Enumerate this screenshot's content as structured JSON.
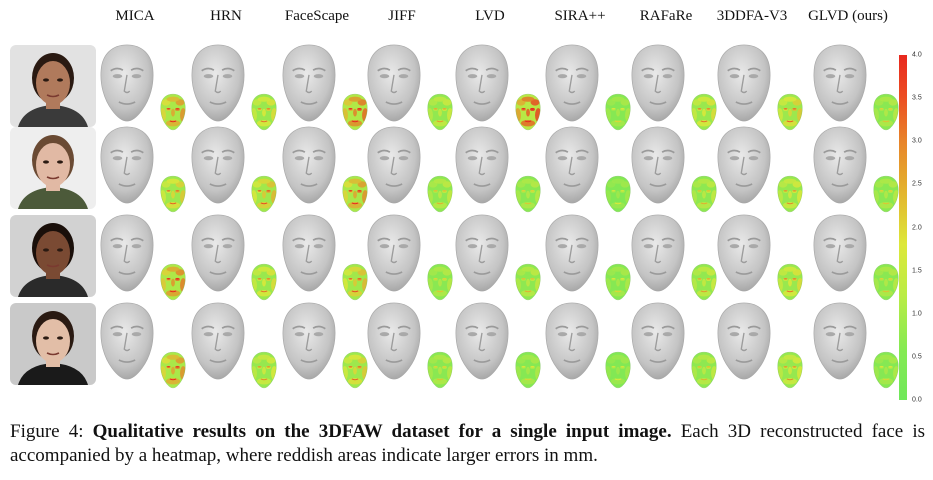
{
  "figure": {
    "methods": [
      "MICA",
      "HRN",
      "FaceScape",
      "JIFF",
      "LVD",
      "SIRA++",
      "RAFaRe",
      "3DDFA-V3",
      "GLVD (ours)"
    ],
    "colorbar": {
      "ticks": [
        "4.0",
        "3.5",
        "3.0",
        "2.5",
        "2.0",
        "1.5",
        "1.0",
        "0.5",
        "0.0"
      ],
      "colors": {
        "high": "#e8281e",
        "mid": "#dde83a",
        "low": "#6fe85a"
      }
    },
    "subjects": [
      {
        "skin": "#b07a5c",
        "hair": "#2a1a12",
        "bg": "#e2e2e2",
        "shirt": "#3a3a3a"
      },
      {
        "skin": "#e1b9a4",
        "hair": "#6a4a33",
        "bg": "#eeeeee",
        "shirt": "#4c5a3a"
      },
      {
        "skin": "#7a4a33",
        "hair": "#1a0f0a",
        "bg": "#d2d2d2",
        "shirt": "#2a2a2a"
      },
      {
        "skin": "#e2bea7",
        "hair": "#2a1a12",
        "bg": "#c9c9c9",
        "shirt": "#1a1a1a"
      }
    ],
    "heat_errors": [
      [
        0.75,
        0.55,
        0.85,
        0.45,
        0.95,
        0.3,
        0.55,
        0.6,
        0.35
      ],
      [
        0.6,
        0.65,
        0.75,
        0.4,
        0.35,
        0.25,
        0.4,
        0.5,
        0.35
      ],
      [
        0.8,
        0.55,
        0.65,
        0.35,
        0.4,
        0.3,
        0.45,
        0.55,
        0.35
      ],
      [
        0.75,
        0.5,
        0.6,
        0.35,
        0.3,
        0.25,
        0.4,
        0.5,
        0.3
      ]
    ]
  },
  "caption": {
    "label": "Figure 4: ",
    "title": "Qualitative results on the 3DFAW dataset for a single input image.",
    "body": " Each 3D reconstructed face is accompanied by a heatmap, where reddish areas indicate larger errors in mm."
  }
}
